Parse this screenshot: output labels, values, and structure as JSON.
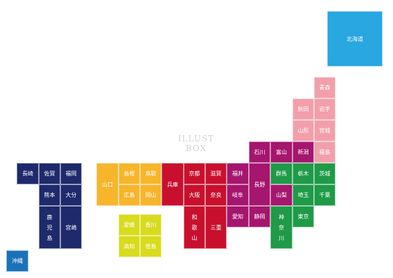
{
  "watermark": "ILLUST BOX",
  "colors": {
    "hokkaido": "#28a7e1",
    "tohoku": "#f29fab",
    "kanto": "#1f9a48",
    "chubu": "#a5166f",
    "kinki": "#c8102e",
    "chugoku": "#f7b52c",
    "shikoku": "#d9db1d",
    "kyushu": "#1e2a6b",
    "okinawa": "#1a72b8"
  },
  "prefectures": [
    {
      "id": "hokkaido",
      "label": "北海道",
      "region": "hokkaido"
    },
    {
      "id": "aomori",
      "label": "青森",
      "region": "tohoku"
    },
    {
      "id": "akita",
      "label": "秋田",
      "region": "tohoku"
    },
    {
      "id": "iwate",
      "label": "岩手",
      "region": "tohoku"
    },
    {
      "id": "yamagata",
      "label": "山形",
      "region": "tohoku"
    },
    {
      "id": "miyagi",
      "label": "宮城",
      "region": "tohoku"
    },
    {
      "id": "fukushima",
      "label": "福島",
      "region": "tohoku"
    },
    {
      "id": "ishikawa",
      "label": "石川",
      "region": "chubu"
    },
    {
      "id": "toyama",
      "label": "富山",
      "region": "chubu"
    },
    {
      "id": "niigata",
      "label": "新潟",
      "region": "chubu"
    },
    {
      "id": "fukui",
      "label": "福井",
      "region": "chubu"
    },
    {
      "id": "nagano",
      "label": "長野",
      "region": "chubu"
    },
    {
      "id": "gifu",
      "label": "岐阜",
      "region": "chubu"
    },
    {
      "id": "aichi",
      "label": "愛知",
      "region": "chubu"
    },
    {
      "id": "shizuoka",
      "label": "静岡",
      "region": "chubu"
    },
    {
      "id": "yamanashi",
      "label": "山梨",
      "region": "chubu"
    },
    {
      "id": "gunma",
      "label": "群馬",
      "region": "kanto"
    },
    {
      "id": "tochigi",
      "label": "栃木",
      "region": "kanto"
    },
    {
      "id": "ibaraki",
      "label": "茨城",
      "region": "kanto"
    },
    {
      "id": "saitama",
      "label": "埼玉",
      "region": "kanto"
    },
    {
      "id": "chiba",
      "label": "千葉",
      "region": "kanto"
    },
    {
      "id": "tokyo",
      "label": "東京",
      "region": "kanto"
    },
    {
      "id": "kanagawa",
      "label": "神奈川",
      "region": "kanto"
    },
    {
      "id": "hyogo",
      "label": "兵庫",
      "region": "kinki"
    },
    {
      "id": "kyoto",
      "label": "京都",
      "region": "kinki"
    },
    {
      "id": "shiga",
      "label": "滋賀",
      "region": "kinki"
    },
    {
      "id": "osaka",
      "label": "大阪",
      "region": "kinki"
    },
    {
      "id": "nara",
      "label": "奈良",
      "region": "kinki"
    },
    {
      "id": "wakayama",
      "label": "和歌山",
      "region": "kinki"
    },
    {
      "id": "mie",
      "label": "三重",
      "region": "kinki"
    },
    {
      "id": "yamaguchi",
      "label": "山口",
      "region": "chugoku"
    },
    {
      "id": "shimane",
      "label": "島根",
      "region": "chugoku"
    },
    {
      "id": "tottori",
      "label": "鳥取",
      "region": "chugoku"
    },
    {
      "id": "hiroshima",
      "label": "広島",
      "region": "chugoku"
    },
    {
      "id": "okayama",
      "label": "岡山",
      "region": "chugoku"
    },
    {
      "id": "ehime",
      "label": "愛媛",
      "region": "shikoku"
    },
    {
      "id": "kagawa",
      "label": "香川",
      "region": "shikoku"
    },
    {
      "id": "kochi",
      "label": "高知",
      "region": "shikoku"
    },
    {
      "id": "tokushima",
      "label": "徳島",
      "region": "shikoku"
    },
    {
      "id": "nagasaki",
      "label": "長崎",
      "region": "kyushu"
    },
    {
      "id": "saga",
      "label": "佐賀",
      "region": "kyushu"
    },
    {
      "id": "fukuoka",
      "label": "福岡",
      "region": "kyushu"
    },
    {
      "id": "kumamoto",
      "label": "熊本",
      "region": "kyushu"
    },
    {
      "id": "oita",
      "label": "大分",
      "region": "kyushu"
    },
    {
      "id": "kagoshima",
      "label": "鹿児島",
      "region": "kyushu"
    },
    {
      "id": "miyazaki",
      "label": "宮崎",
      "region": "kyushu"
    },
    {
      "id": "okinawa",
      "label": "沖縄",
      "region": "okinawa"
    }
  ]
}
